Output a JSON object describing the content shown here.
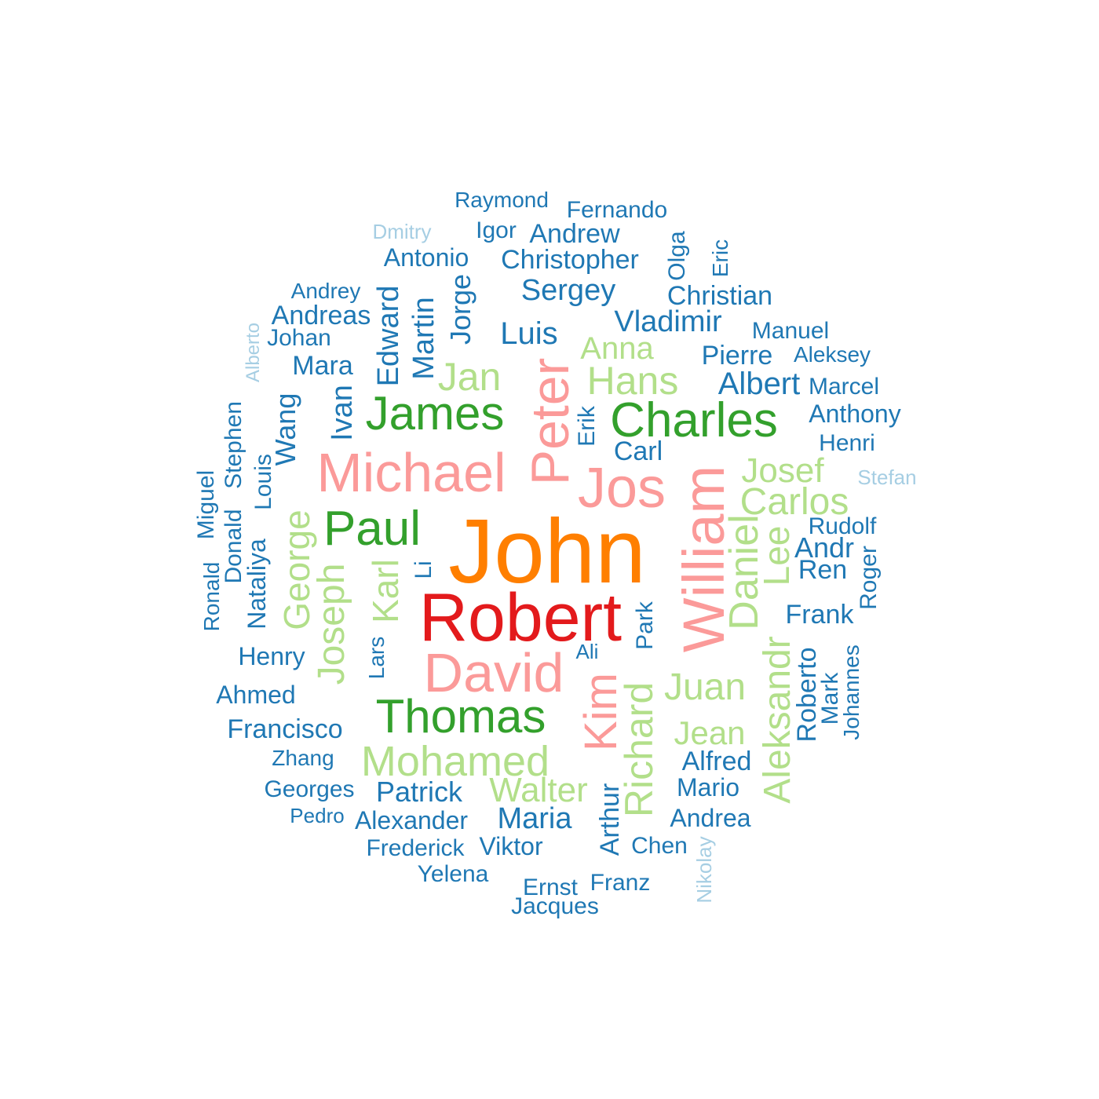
{
  "palette": {
    "orange": "#ff7f00",
    "red": "#e31a1c",
    "pink": "#fb9a99",
    "green": "#33a02c",
    "lightgreen": "#b2df8a",
    "blue": "#1f78b4",
    "lightblue": "#a6cee3"
  },
  "words": [
    {
      "text": "John",
      "color": "orange"
    },
    {
      "text": "Robert",
      "color": "red"
    },
    {
      "text": "Michael",
      "color": "pink"
    },
    {
      "text": "David",
      "color": "pink"
    },
    {
      "text": "Jos",
      "color": "pink"
    },
    {
      "text": "Peter",
      "color": "pink"
    },
    {
      "text": "William",
      "color": "pink"
    },
    {
      "text": "Kim",
      "color": "pink"
    },
    {
      "text": "James",
      "color": "green"
    },
    {
      "text": "Charles",
      "color": "green"
    },
    {
      "text": "Paul",
      "color": "green"
    },
    {
      "text": "Thomas",
      "color": "green"
    },
    {
      "text": "Jan",
      "color": "lightgreen"
    },
    {
      "text": "Hans",
      "color": "lightgreen"
    },
    {
      "text": "Anna",
      "color": "lightgreen"
    },
    {
      "text": "Josef",
      "color": "lightgreen"
    },
    {
      "text": "Carlos",
      "color": "lightgreen"
    },
    {
      "text": "George",
      "color": "lightgreen"
    },
    {
      "text": "Joseph",
      "color": "lightgreen"
    },
    {
      "text": "Karl",
      "color": "lightgreen"
    },
    {
      "text": "Daniel",
      "color": "lightgreen"
    },
    {
      "text": "Lee",
      "color": "lightgreen"
    },
    {
      "text": "Juan",
      "color": "lightgreen"
    },
    {
      "text": "Jean",
      "color": "lightgreen"
    },
    {
      "text": "Mohamed",
      "color": "lightgreen"
    },
    {
      "text": "Walter",
      "color": "lightgreen"
    },
    {
      "text": "Richard",
      "color": "lightgreen"
    },
    {
      "text": "Aleksandr",
      "color": "lightgreen"
    },
    {
      "text": "Raymond",
      "color": "blue"
    },
    {
      "text": "Fernando",
      "color": "blue"
    },
    {
      "text": "Igor",
      "color": "blue"
    },
    {
      "text": "Andrew",
      "color": "blue"
    },
    {
      "text": "Antonio",
      "color": "blue"
    },
    {
      "text": "Christopher",
      "color": "blue"
    },
    {
      "text": "Olga",
      "color": "blue"
    },
    {
      "text": "Eric",
      "color": "blue"
    },
    {
      "text": "Sergey",
      "color": "blue"
    },
    {
      "text": "Christian",
      "color": "blue"
    },
    {
      "text": "Andrey",
      "color": "blue"
    },
    {
      "text": "Andreas",
      "color": "blue"
    },
    {
      "text": "Edward",
      "color": "blue"
    },
    {
      "text": "Martin",
      "color": "blue"
    },
    {
      "text": "Jorge",
      "color": "blue"
    },
    {
      "text": "Vladimir",
      "color": "blue"
    },
    {
      "text": "Manuel",
      "color": "blue"
    },
    {
      "text": "Johan",
      "color": "blue"
    },
    {
      "text": "Luis",
      "color": "blue"
    },
    {
      "text": "Pierre",
      "color": "blue"
    },
    {
      "text": "Aleksey",
      "color": "blue"
    },
    {
      "text": "Mara",
      "color": "blue"
    },
    {
      "text": "Albert",
      "color": "blue"
    },
    {
      "text": "Marcel",
      "color": "blue"
    },
    {
      "text": "Ivan",
      "color": "blue"
    },
    {
      "text": "Anthony",
      "color": "blue"
    },
    {
      "text": "Wang",
      "color": "blue"
    },
    {
      "text": "Stephen",
      "color": "blue"
    },
    {
      "text": "Erik",
      "color": "blue"
    },
    {
      "text": "Henri",
      "color": "blue"
    },
    {
      "text": "Carl",
      "color": "blue"
    },
    {
      "text": "Louis",
      "color": "blue"
    },
    {
      "text": "Miguel",
      "color": "blue"
    },
    {
      "text": "Rudolf",
      "color": "blue"
    },
    {
      "text": "Donald",
      "color": "blue"
    },
    {
      "text": "Andr",
      "color": "blue"
    },
    {
      "text": "Nataliya",
      "color": "blue"
    },
    {
      "text": "Li",
      "color": "blue"
    },
    {
      "text": "Ren",
      "color": "blue"
    },
    {
      "text": "Ronald",
      "color": "blue"
    },
    {
      "text": "Roger",
      "color": "blue"
    },
    {
      "text": "Frank",
      "color": "blue"
    },
    {
      "text": "Park",
      "color": "blue"
    },
    {
      "text": "Lars",
      "color": "blue"
    },
    {
      "text": "Henry",
      "color": "blue"
    },
    {
      "text": "Ali",
      "color": "blue"
    },
    {
      "text": "Roberto",
      "color": "blue"
    },
    {
      "text": "Mark",
      "color": "blue"
    },
    {
      "text": "Johannes",
      "color": "blue"
    },
    {
      "text": "Ahmed",
      "color": "blue"
    },
    {
      "text": "Francisco",
      "color": "blue"
    },
    {
      "text": "Zhang",
      "color": "blue"
    },
    {
      "text": "Alfred",
      "color": "blue"
    },
    {
      "text": "Georges",
      "color": "blue"
    },
    {
      "text": "Patrick",
      "color": "blue"
    },
    {
      "text": "Mario",
      "color": "blue"
    },
    {
      "text": "Arthur",
      "color": "blue"
    },
    {
      "text": "Pedro",
      "color": "blue"
    },
    {
      "text": "Alexander",
      "color": "blue"
    },
    {
      "text": "Maria",
      "color": "blue"
    },
    {
      "text": "Andrea",
      "color": "blue"
    },
    {
      "text": "Frederick",
      "color": "blue"
    },
    {
      "text": "Viktor",
      "color": "blue"
    },
    {
      "text": "Chen",
      "color": "blue"
    },
    {
      "text": "Yelena",
      "color": "blue"
    },
    {
      "text": "Ernst",
      "color": "blue"
    },
    {
      "text": "Franz",
      "color": "blue"
    },
    {
      "text": "Jacques",
      "color": "blue"
    },
    {
      "text": "Dmitry",
      "color": "lightblue"
    },
    {
      "text": "Alberto",
      "color": "lightblue"
    },
    {
      "text": "Stefan",
      "color": "lightblue"
    },
    {
      "text": "Nikolay",
      "color": "lightblue"
    }
  ]
}
